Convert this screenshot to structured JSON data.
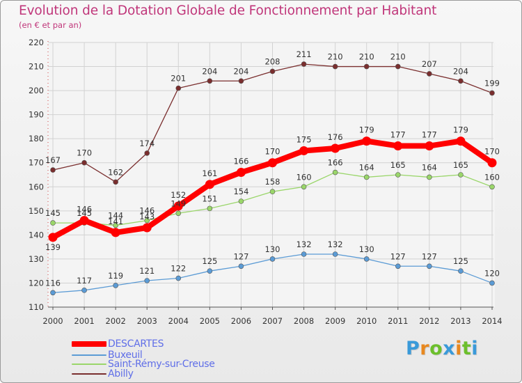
{
  "header": {
    "title": "Evolution de la Dotation Globale de Fonctionnement par Habitant",
    "subtitle": "(en € et par an)"
  },
  "logo": {
    "text": "Proxiti",
    "colors": [
      "#3a9ad9",
      "#e8881f",
      "#6cbf2c",
      "#3a9ad9",
      "#e8881f",
      "#6cbf2c",
      "#3a9ad9"
    ]
  },
  "colors": {
    "title": "#c0367a",
    "axis": "#d04040",
    "legend_text": "#5f6ee8"
  },
  "chart_data": {
    "type": "line",
    "title": "Evolution de la Dotation Globale de Fonctionnement par Habitant",
    "subtitle": "(en € et par an)",
    "xlabel": "",
    "ylabel": "",
    "x": [
      "2000",
      "2001",
      "2002",
      "2003",
      "2004",
      "2005",
      "2006",
      "2007",
      "2008",
      "2009",
      "2010",
      "2011",
      "2012",
      "2013",
      "2014"
    ],
    "ylim": [
      110,
      220
    ],
    "yticks": [
      110,
      120,
      130,
      140,
      150,
      160,
      170,
      180,
      190,
      200,
      210,
      220
    ],
    "grid": true,
    "legend_position": "bottom-left",
    "series": [
      {
        "name": "DESCARTES",
        "color": "#ff0000",
        "values": [
          139,
          146,
          141,
          143,
          152,
          161,
          166,
          170,
          175,
          176,
          179,
          177,
          177,
          179,
          170
        ]
      },
      {
        "name": "Buxeuil",
        "color": "#5b9bd5",
        "values": [
          116,
          117,
          119,
          121,
          122,
          125,
          127,
          130,
          132,
          132,
          130,
          127,
          127,
          125,
          120
        ]
      },
      {
        "name": "Saint-Rémy-sur-Creuse",
        "color": "#9ad66a",
        "values": [
          145,
          145,
          144,
          146,
          149,
          151,
          154,
          158,
          160,
          166,
          164,
          165,
          164,
          165,
          160
        ]
      },
      {
        "name": "Abilly",
        "color": "#7a2e2e",
        "values": [
          167,
          170,
          162,
          174,
          201,
          204,
          204,
          208,
          211,
          210,
          210,
          210,
          207,
          204,
          199
        ]
      }
    ]
  }
}
